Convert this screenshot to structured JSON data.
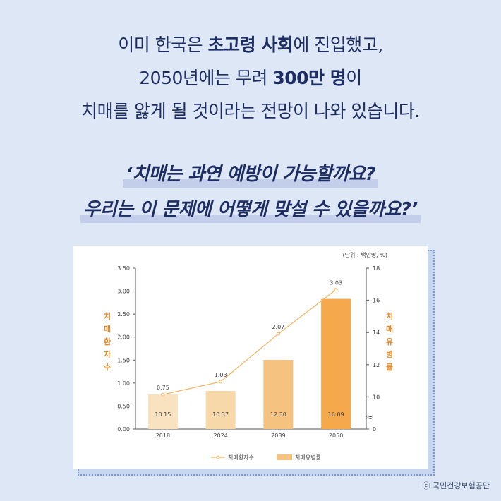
{
  "intro": {
    "line1_pre": "이미 한국은 ",
    "line1_bold": "초고령 사회",
    "line1_post": "에 진입했고,",
    "line2_pre": "2050년에는 무려 ",
    "line2_bold": "300만 명",
    "line2_post": "이",
    "line3": "치매를 앓게 될 것이라는 전망이 나와 있습니다."
  },
  "quote": {
    "line1": "‘치매는 과연 예방이 가능할까요?",
    "line2": "우리는 이 문제에 어떻게 맞설 수 있을까요?’"
  },
  "chart_data": {
    "type": "bar+line",
    "unit_note": "(단위 : 백만명, %)",
    "categories": [
      "2018",
      "2024",
      "2039",
      "2050"
    ],
    "series": [
      {
        "name": "치매환자수",
        "kind": "line",
        "axis": "left",
        "values": [
          0.75,
          1.03,
          2.07,
          3.03
        ],
        "labels": [
          "0.75",
          "1.03",
          "2.07",
          "3.03"
        ]
      },
      {
        "name": "치매유병률",
        "kind": "bar",
        "axis": "right",
        "values": [
          10.15,
          10.37,
          12.3,
          16.09
        ],
        "labels": [
          "10.15",
          "10.37",
          "12.30",
          "16.09"
        ]
      }
    ],
    "left_axis": {
      "label": "치매환자수",
      "ylim": [
        0,
        3.5
      ],
      "ticks": [
        "0.00",
        "0.50",
        "1.00",
        "1.50",
        "2.00",
        "2.50",
        "3.00",
        "3.50"
      ]
    },
    "right_axis": {
      "label": "치매유병률",
      "ylim": [
        8,
        18
      ],
      "ticks": [
        "10",
        "12",
        "14",
        "16",
        "18"
      ],
      "baseline_tick": "0",
      "break_symbol": "≈"
    },
    "legend": {
      "position": "bottom-center"
    },
    "colors": {
      "line": "#f0b461",
      "bars": [
        "#f9e2c0",
        "#f6d8a9",
        "#f5c37f",
        "#f6a84c"
      ],
      "axis_label": "#e08a2c",
      "text": "#444444"
    },
    "grid": false
  },
  "copyright": "ⓒ 국민건강보험공단"
}
